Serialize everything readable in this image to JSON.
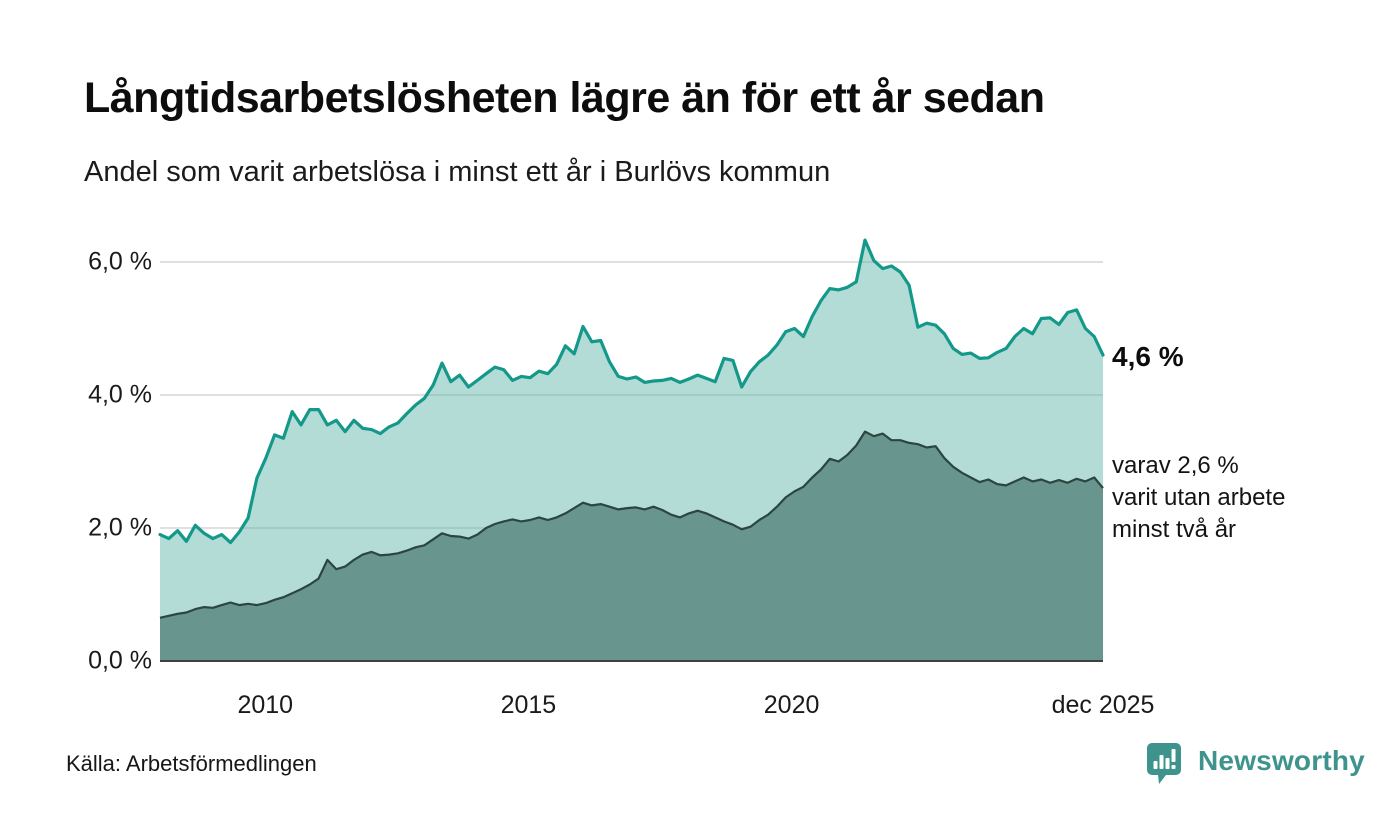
{
  "header": {
    "title": "Långtidsarbetslösheten lägre än för ett år sedan",
    "subtitle": "Andel som varit arbetslösa i minst ett år i Burlövs kommun"
  },
  "annotations": {
    "latest_total": "4,6 %",
    "two_year_line1": "varav 2,6 %",
    "two_year_line2": "varit utan arbete",
    "two_year_line3": "minst två år"
  },
  "footer": {
    "source": "Källa: Arbetsförmedlingen",
    "brand": "Newsworthy"
  },
  "colors": {
    "teal_line": "#13988a",
    "light_fill": "rgba(86,178,163,0.45)",
    "dark_fill": "#68968f",
    "dark_line": "#2b463f",
    "grid": "#e0e0e2",
    "axis": "#404040",
    "brand_teal": "#3e948c"
  },
  "chart_data": {
    "type": "area",
    "title": "Långtidsarbetslösheten lägre än för ett år sedan",
    "subtitle": "Andel som varit arbetslösa i minst ett år i Burlövs kommun",
    "x_start": 2008.0,
    "x_end": 2025.917,
    "x_unit": "year (monthly series, Jan 2008 – Dec 2025, sampled every 2 months)",
    "ylim": [
      0,
      6.6
    ],
    "grid": true,
    "legend": "none (direct labels at line ends)",
    "y_ticks": [
      {
        "label": "0,0 %",
        "value": 0
      },
      {
        "label": "2,0 %",
        "value": 2
      },
      {
        "label": "4,0 %",
        "value": 4
      },
      {
        "label": "6,0 %",
        "value": 6
      }
    ],
    "x_ticks": [
      {
        "label": "2010",
        "year": 2010
      },
      {
        "label": "2015",
        "year": 2015
      },
      {
        "label": "2020",
        "year": 2020
      },
      {
        "label": "dec 2025",
        "year": 2025.917
      }
    ],
    "series": [
      {
        "name": "Arbetslösa minst ett år (andel, %)",
        "latest_value": 4.6,
        "values": [
          1.9,
          1.84,
          1.96,
          1.8,
          2.04,
          1.92,
          1.84,
          1.9,
          1.78,
          1.94,
          2.15,
          2.75,
          3.05,
          3.4,
          3.35,
          3.75,
          3.55,
          3.78,
          3.78,
          3.55,
          3.62,
          3.45,
          3.62,
          3.5,
          3.48,
          3.42,
          3.52,
          3.58,
          3.72,
          3.85,
          3.95,
          4.15,
          4.48,
          4.2,
          4.3,
          4.12,
          4.22,
          4.32,
          4.42,
          4.38,
          4.22,
          4.28,
          4.26,
          4.36,
          4.32,
          4.46,
          4.74,
          4.62,
          5.03,
          4.8,
          4.82,
          4.5,
          4.28,
          4.24,
          4.27,
          4.19,
          4.21,
          4.22,
          4.25,
          4.19,
          4.24,
          4.3,
          4.25,
          4.2,
          4.55,
          4.52,
          4.12,
          4.35,
          4.5,
          4.6,
          4.75,
          4.95,
          5.0,
          4.88,
          5.18,
          5.42,
          5.6,
          5.58,
          5.62,
          5.7,
          6.33,
          6.02,
          5.9,
          5.94,
          5.85,
          5.65,
          5.02,
          5.08,
          5.05,
          4.92,
          4.7,
          4.61,
          4.63,
          4.55,
          4.56,
          4.64,
          4.7,
          4.88,
          5.0,
          4.92,
          5.15,
          5.16,
          5.06,
          5.24,
          5.28,
          5.0,
          4.88,
          4.6
        ]
      },
      {
        "name": "Arbetslösa minst två år (andel, %)",
        "latest_value": 2.6,
        "values": [
          0.65,
          0.68,
          0.71,
          0.73,
          0.78,
          0.81,
          0.8,
          0.84,
          0.88,
          0.84,
          0.86,
          0.84,
          0.87,
          0.92,
          0.96,
          1.02,
          1.08,
          1.15,
          1.24,
          1.52,
          1.38,
          1.42,
          1.52,
          1.6,
          1.64,
          1.59,
          1.6,
          1.62,
          1.66,
          1.71,
          1.74,
          1.83,
          1.92,
          1.88,
          1.87,
          1.84,
          1.9,
          2.0,
          2.06,
          2.1,
          2.13,
          2.1,
          2.12,
          2.16,
          2.12,
          2.16,
          2.22,
          2.3,
          2.38,
          2.34,
          2.36,
          2.32,
          2.28,
          2.3,
          2.31,
          2.28,
          2.32,
          2.27,
          2.2,
          2.16,
          2.22,
          2.26,
          2.22,
          2.16,
          2.1,
          2.05,
          1.98,
          2.02,
          2.12,
          2.2,
          2.32,
          2.46,
          2.55,
          2.62,
          2.76,
          2.88,
          3.04,
          3.0,
          3.1,
          3.24,
          3.45,
          3.38,
          3.42,
          3.32,
          3.32,
          3.28,
          3.26,
          3.21,
          3.23,
          3.05,
          2.92,
          2.83,
          2.76,
          2.69,
          2.73,
          2.66,
          2.64,
          2.7,
          2.76,
          2.7,
          2.73,
          2.68,
          2.72,
          2.68,
          2.74,
          2.7,
          2.76,
          2.6
        ]
      }
    ]
  }
}
